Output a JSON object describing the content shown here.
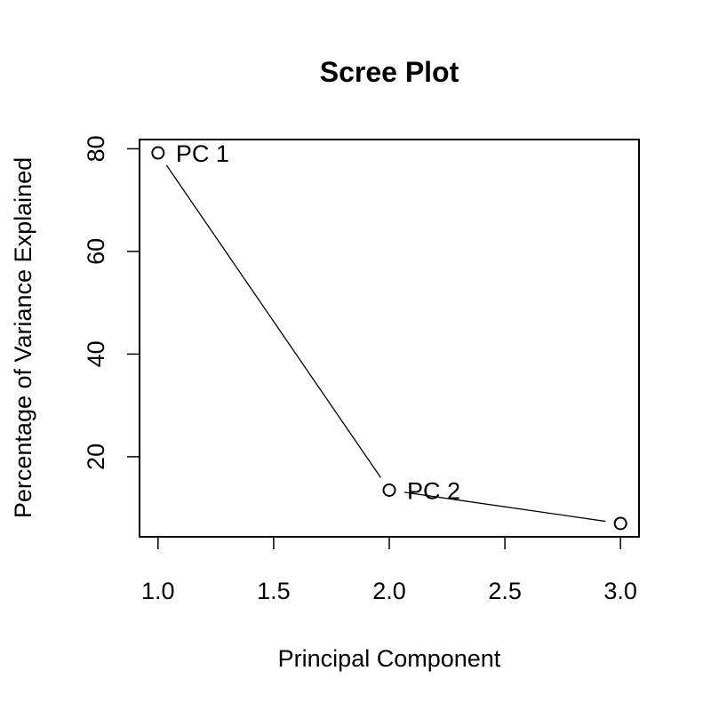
{
  "chart_data": {
    "type": "line",
    "title": "Scree Plot",
    "xlabel": "Principal Component",
    "ylabel": "Percentage of Variance Explained",
    "x": [
      1,
      2,
      3
    ],
    "series": [
      {
        "values": [
          79.2,
          13.5,
          7.0
        ],
        "point_labels": [
          "PC 1",
          "PC 2",
          ""
        ]
      }
    ],
    "xlim": [
      0.92,
      3.08
    ],
    "ylim": [
      4.4,
      81.8
    ],
    "x_ticks": [
      1.0,
      1.5,
      2.0,
      2.5,
      3.0
    ],
    "x_tick_labels": [
      "1.0",
      "1.5",
      "2.0",
      "2.5",
      "3.0"
    ],
    "y_ticks": [
      20,
      40,
      60,
      80
    ],
    "y_tick_labels": [
      "20",
      "40",
      "60",
      "80"
    ],
    "grid": false,
    "legend": "none",
    "marker": "open-circle",
    "colors": {
      "line": "#000000",
      "marker_fill": "#ffffff",
      "marker_stroke": "#000000",
      "text": "#000000"
    }
  }
}
